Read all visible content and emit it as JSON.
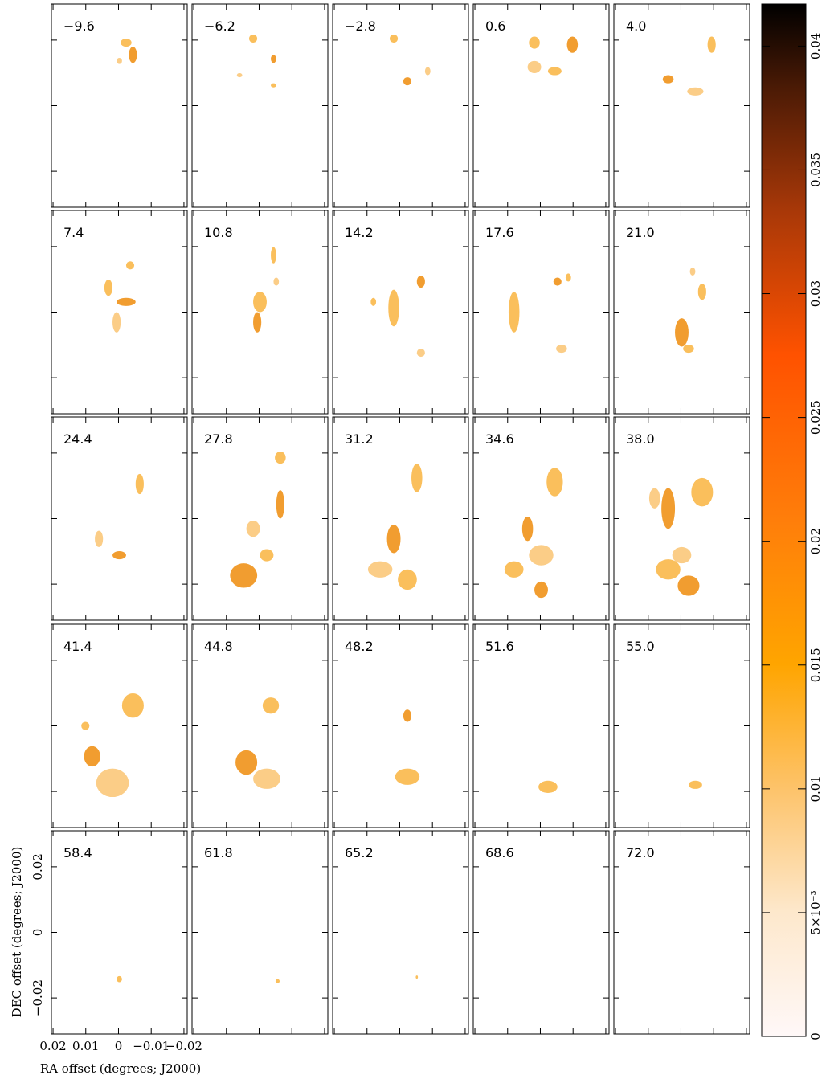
{
  "chart_data": {
    "type": "channel-map",
    "channels": [
      "−9.6",
      "−6.2",
      "−2.8",
      "0.6",
      "4.0",
      "7.4",
      "10.8",
      "14.2",
      "17.6",
      "21.0",
      "24.4",
      "27.8",
      "31.2",
      "34.6",
      "38.0",
      "41.4",
      "44.8",
      "48.2",
      "51.6",
      "55.0",
      "58.4",
      "61.8",
      "65.2",
      "68.6",
      "72.0"
    ],
    "xlabel": "RA offset (degrees; J2000)",
    "ylabel": "DEC offset (degrees; J2000)",
    "xlim": [
      0.0205,
      -0.021
    ],
    "xticks": [
      0.02,
      0.01,
      0,
      {
        "value": -0.01,
        "label": "−0.01"
      },
      {
        "value": -0.02,
        "label": "−0.02"
      }
    ],
    "ylim": [
      -0.031,
      0.031
    ],
    "yticks": [
      {
        "value": -0.02,
        "label": "−0.02"
      },
      0,
      0.02
    ],
    "clim": [
      0,
      0.0417
    ],
    "cticks": [
      0,
      {
        "value": 0.005,
        "label": "5×10⁻³"
      },
      0.01,
      0.015,
      0.02,
      0.025,
      0.03,
      0.035,
      0.04
    ]
  }
}
